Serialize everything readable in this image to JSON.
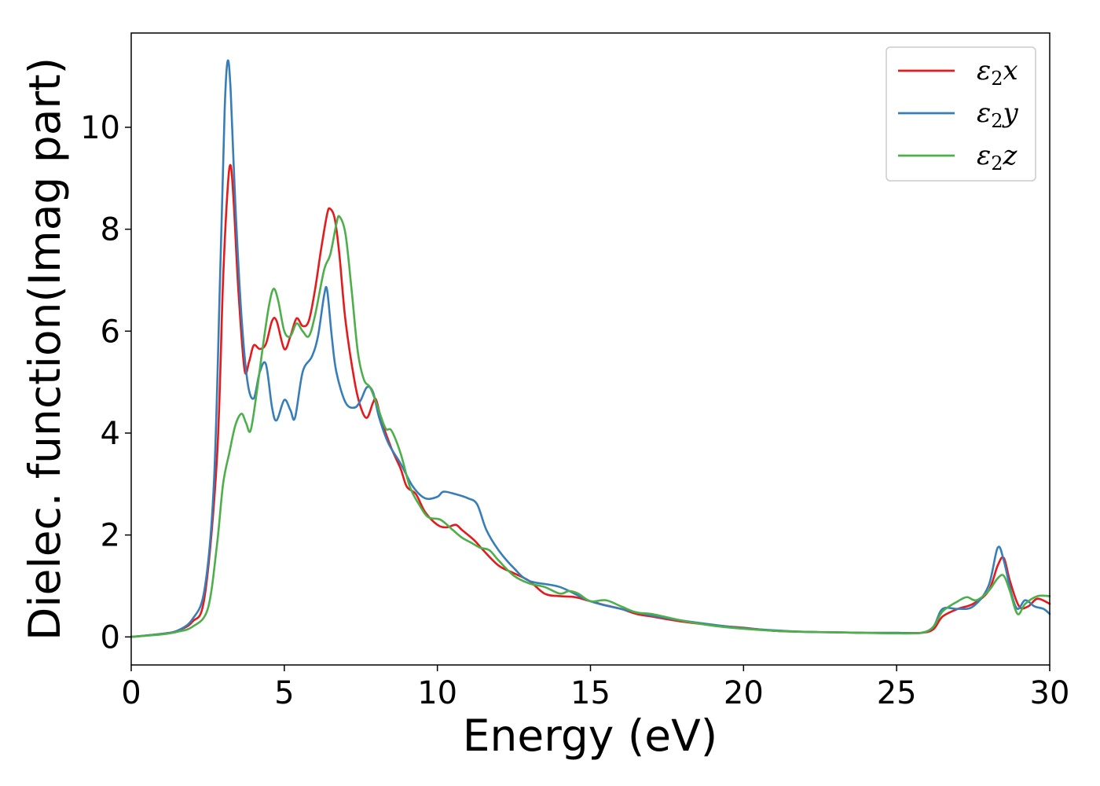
{
  "chart_data": {
    "type": "line",
    "xlabel": "Energy (eV)",
    "ylabel": "Dielec. function(Imag part)",
    "xlim": [
      0,
      30
    ],
    "ylim": [
      -0.55,
      11.85
    ],
    "xticks": [
      0,
      5,
      10,
      15,
      20,
      25,
      30
    ],
    "yticks": [
      0,
      2,
      4,
      6,
      8,
      10
    ],
    "grid": false,
    "legend_position": "top-right",
    "series": [
      {
        "name": "ε₂x",
        "legend_symbol": "ε",
        "legend_sub": "2",
        "legend_var": "x",
        "color": "#e41a1c",
        "points": [
          [
            0,
            0
          ],
          [
            1,
            0.06
          ],
          [
            1.5,
            0.12
          ],
          [
            2,
            0.3
          ],
          [
            2.4,
            0.8
          ],
          [
            2.8,
            3.5
          ],
          [
            3.0,
            7.0
          ],
          [
            3.15,
            8.8
          ],
          [
            3.25,
            9.25
          ],
          [
            3.35,
            8.5
          ],
          [
            3.5,
            6.8
          ],
          [
            3.7,
            5.25
          ],
          [
            3.85,
            5.4
          ],
          [
            4.0,
            5.72
          ],
          [
            4.2,
            5.65
          ],
          [
            4.4,
            5.75
          ],
          [
            4.6,
            6.2
          ],
          [
            4.75,
            6.2
          ],
          [
            5.0,
            5.65
          ],
          [
            5.2,
            5.9
          ],
          [
            5.4,
            6.25
          ],
          [
            5.6,
            6.1
          ],
          [
            5.8,
            6.2
          ],
          [
            6.0,
            6.8
          ],
          [
            6.2,
            7.6
          ],
          [
            6.4,
            8.3
          ],
          [
            6.5,
            8.4
          ],
          [
            6.65,
            8.2
          ],
          [
            6.8,
            7.5
          ],
          [
            7.0,
            6.2
          ],
          [
            7.3,
            5.0
          ],
          [
            7.5,
            4.5
          ],
          [
            7.7,
            4.3
          ],
          [
            7.9,
            4.6
          ],
          [
            8.0,
            4.65
          ],
          [
            8.2,
            4.2
          ],
          [
            8.5,
            3.7
          ],
          [
            8.8,
            3.3
          ],
          [
            9.0,
            2.95
          ],
          [
            9.3,
            2.8
          ],
          [
            9.6,
            2.45
          ],
          [
            10.0,
            2.2
          ],
          [
            10.3,
            2.15
          ],
          [
            10.6,
            2.2
          ],
          [
            10.8,
            2.1
          ],
          [
            11.2,
            1.9
          ],
          [
            11.5,
            1.7
          ],
          [
            12.0,
            1.4
          ],
          [
            12.5,
            1.25
          ],
          [
            13.0,
            1.1
          ],
          [
            13.5,
            0.85
          ],
          [
            14.0,
            0.8
          ],
          [
            14.5,
            0.78
          ],
          [
            15.0,
            0.7
          ],
          [
            15.5,
            0.62
          ],
          [
            16.0,
            0.55
          ],
          [
            16.5,
            0.45
          ],
          [
            17.0,
            0.4
          ],
          [
            18.0,
            0.3
          ],
          [
            19.0,
            0.23
          ],
          [
            20.0,
            0.18
          ],
          [
            21.0,
            0.12
          ],
          [
            22.0,
            0.1
          ],
          [
            23.0,
            0.09
          ],
          [
            24.0,
            0.08
          ],
          [
            25.0,
            0.08
          ],
          [
            25.8,
            0.08
          ],
          [
            26.2,
            0.15
          ],
          [
            26.5,
            0.4
          ],
          [
            27.0,
            0.55
          ],
          [
            27.5,
            0.65
          ],
          [
            28.0,
            0.9
          ],
          [
            28.3,
            1.4
          ],
          [
            28.5,
            1.55
          ],
          [
            28.7,
            1.1
          ],
          [
            29.0,
            0.6
          ],
          [
            29.3,
            0.6
          ],
          [
            29.6,
            0.75
          ],
          [
            30.0,
            0.65
          ]
        ]
      },
      {
        "name": "ε₂y",
        "legend_symbol": "ε",
        "legend_sub": "2",
        "legend_var": "y",
        "color": "#377eb8",
        "points": [
          [
            0,
            0
          ],
          [
            1,
            0.06
          ],
          [
            1.5,
            0.12
          ],
          [
            2,
            0.35
          ],
          [
            2.4,
            0.95
          ],
          [
            2.7,
            3.0
          ],
          [
            2.9,
            7.0
          ],
          [
            3.05,
            10.3
          ],
          [
            3.15,
            11.3
          ],
          [
            3.25,
            10.7
          ],
          [
            3.4,
            8.5
          ],
          [
            3.6,
            6.3
          ],
          [
            3.8,
            5.0
          ],
          [
            4.0,
            4.68
          ],
          [
            4.2,
            5.2
          ],
          [
            4.4,
            5.35
          ],
          [
            4.6,
            4.5
          ],
          [
            4.75,
            4.25
          ],
          [
            5.0,
            4.65
          ],
          [
            5.2,
            4.45
          ],
          [
            5.35,
            4.3
          ],
          [
            5.6,
            5.2
          ],
          [
            5.9,
            5.5
          ],
          [
            6.1,
            5.9
          ],
          [
            6.3,
            6.7
          ],
          [
            6.4,
            6.8
          ],
          [
            6.55,
            5.9
          ],
          [
            6.7,
            5.2
          ],
          [
            7.0,
            4.6
          ],
          [
            7.3,
            4.5
          ],
          [
            7.5,
            4.65
          ],
          [
            7.7,
            4.9
          ],
          [
            7.9,
            4.8
          ],
          [
            8.1,
            4.3
          ],
          [
            8.4,
            3.8
          ],
          [
            8.8,
            3.4
          ],
          [
            9.2,
            2.95
          ],
          [
            9.6,
            2.72
          ],
          [
            10.0,
            2.75
          ],
          [
            10.2,
            2.85
          ],
          [
            10.6,
            2.8
          ],
          [
            11.0,
            2.72
          ],
          [
            11.3,
            2.6
          ],
          [
            11.6,
            2.1
          ],
          [
            12.0,
            1.7
          ],
          [
            12.5,
            1.35
          ],
          [
            13.0,
            1.1
          ],
          [
            14.0,
            0.98
          ],
          [
            15.0,
            0.7
          ],
          [
            16.0,
            0.55
          ],
          [
            17.0,
            0.42
          ],
          [
            18.0,
            0.32
          ],
          [
            19.0,
            0.24
          ],
          [
            20.0,
            0.17
          ],
          [
            21.0,
            0.13
          ],
          [
            22.0,
            0.1
          ],
          [
            23.0,
            0.09
          ],
          [
            24.0,
            0.08
          ],
          [
            25.0,
            0.08
          ],
          [
            25.8,
            0.08
          ],
          [
            26.2,
            0.2
          ],
          [
            26.5,
            0.55
          ],
          [
            27.0,
            0.55
          ],
          [
            27.5,
            0.6
          ],
          [
            28.0,
            1.0
          ],
          [
            28.3,
            1.75
          ],
          [
            28.5,
            1.5
          ],
          [
            28.75,
            0.85
          ],
          [
            28.95,
            0.55
          ],
          [
            29.2,
            0.72
          ],
          [
            29.5,
            0.6
          ],
          [
            29.8,
            0.55
          ],
          [
            30.0,
            0.45
          ]
        ]
      },
      {
        "name": "ε₂z",
        "legend_symbol": "ε",
        "legend_sub": "2",
        "legend_var": "z",
        "color": "#4daf4a",
        "points": [
          [
            0,
            0
          ],
          [
            1,
            0.05
          ],
          [
            1.5,
            0.1
          ],
          [
            2,
            0.2
          ],
          [
            2.5,
            0.55
          ],
          [
            2.8,
            1.8
          ],
          [
            3.0,
            3.0
          ],
          [
            3.2,
            3.6
          ],
          [
            3.4,
            4.15
          ],
          [
            3.6,
            4.38
          ],
          [
            3.75,
            4.2
          ],
          [
            3.9,
            4.05
          ],
          [
            4.1,
            4.8
          ],
          [
            4.3,
            5.7
          ],
          [
            4.5,
            6.5
          ],
          [
            4.65,
            6.83
          ],
          [
            4.8,
            6.6
          ],
          [
            5.0,
            6.0
          ],
          [
            5.2,
            5.9
          ],
          [
            5.4,
            6.15
          ],
          [
            5.6,
            6.0
          ],
          [
            5.8,
            5.9
          ],
          [
            6.0,
            6.3
          ],
          [
            6.3,
            7.2
          ],
          [
            6.5,
            7.5
          ],
          [
            6.7,
            8.1
          ],
          [
            6.8,
            8.25
          ],
          [
            7.0,
            7.9
          ],
          [
            7.2,
            6.8
          ],
          [
            7.4,
            5.6
          ],
          [
            7.6,
            5.05
          ],
          [
            7.8,
            4.9
          ],
          [
            8.0,
            4.6
          ],
          [
            8.3,
            4.1
          ],
          [
            8.5,
            4.05
          ],
          [
            8.8,
            3.6
          ],
          [
            9.1,
            2.95
          ],
          [
            9.4,
            2.6
          ],
          [
            9.7,
            2.35
          ],
          [
            10.1,
            2.3
          ],
          [
            10.5,
            2.1
          ],
          [
            10.8,
            1.95
          ],
          [
            11.1,
            1.85
          ],
          [
            11.4,
            1.75
          ],
          [
            11.7,
            1.7
          ],
          [
            12.0,
            1.5
          ],
          [
            12.5,
            1.2
          ],
          [
            13.0,
            1.05
          ],
          [
            13.5,
            0.98
          ],
          [
            14.0,
            0.85
          ],
          [
            14.3,
            0.9
          ],
          [
            14.6,
            0.85
          ],
          [
            15.0,
            0.7
          ],
          [
            15.5,
            0.72
          ],
          [
            16.0,
            0.6
          ],
          [
            16.5,
            0.48
          ],
          [
            17.0,
            0.45
          ],
          [
            18.0,
            0.32
          ],
          [
            19.0,
            0.22
          ],
          [
            20.0,
            0.16
          ],
          [
            21.0,
            0.12
          ],
          [
            22.0,
            0.1
          ],
          [
            23.0,
            0.09
          ],
          [
            24.0,
            0.08
          ],
          [
            25.0,
            0.07
          ],
          [
            25.8,
            0.08
          ],
          [
            26.2,
            0.2
          ],
          [
            26.5,
            0.5
          ],
          [
            27.0,
            0.7
          ],
          [
            27.3,
            0.78
          ],
          [
            27.6,
            0.72
          ],
          [
            28.0,
            0.9
          ],
          [
            28.3,
            1.15
          ],
          [
            28.5,
            1.2
          ],
          [
            28.7,
            0.9
          ],
          [
            28.95,
            0.45
          ],
          [
            29.2,
            0.65
          ],
          [
            29.6,
            0.8
          ],
          [
            30.0,
            0.8
          ]
        ]
      }
    ]
  }
}
